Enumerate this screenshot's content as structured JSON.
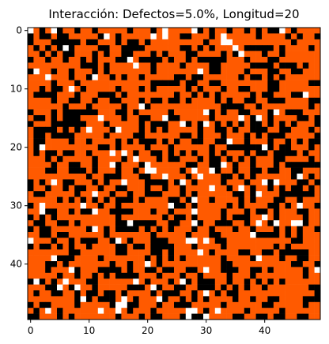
{
  "chart_data": {
    "type": "heatmap",
    "title": "Interacción: Defectos=5.0%, Longitud=20",
    "xlabel": "",
    "ylabel": "",
    "rows": 50,
    "cols": 50,
    "x_ticks": [
      0,
      10,
      20,
      30,
      40
    ],
    "y_ticks": [
      0,
      10,
      20,
      30,
      40
    ],
    "legend": [],
    "colors": {
      "0": "#ff5a00",
      "1": "#000000",
      "2": "#ffffff"
    },
    "grid": false,
    "generation": {
      "seed": 20050,
      "p_black": 0.33,
      "p_white": 0.05
    }
  }
}
